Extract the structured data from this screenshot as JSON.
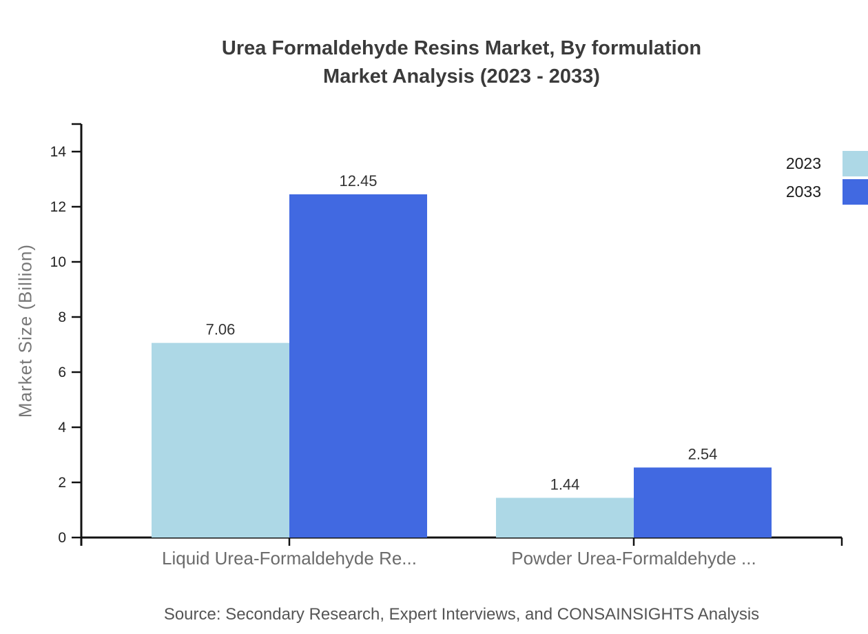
{
  "title": {
    "line1": "Urea Formaldehyde Resins Market, By formulation",
    "line2": "Market Analysis (2023 - 2033)"
  },
  "source": "Source: Secondary Research, Expert Interviews, and CONSAINSIGHTS Analysis",
  "colors": {
    "series_2023": "#ADD8E6",
    "series_2033": "#4169E1",
    "axis": "#111111",
    "title_text": "#3b3b3b",
    "tick_text": "#222222",
    "category_text": "#6b6b6b",
    "value_text": "#333333",
    "source_text": "#555555",
    "axis_title_text": "#777777"
  },
  "legend": {
    "items": [
      {
        "label": "2023",
        "color": "#ADD8E6"
      },
      {
        "label": "2033",
        "color": "#4169E1"
      }
    ]
  },
  "chart_data": {
    "type": "bar",
    "title": "Urea Formaldehyde Resins Market, By formulation Market Analysis (2023 - 2033)",
    "categories": [
      "Liquid Urea-Formaldehyde Re...",
      "Powder Urea-Formaldehyde ..."
    ],
    "series": [
      {
        "name": "2023",
        "color": "#ADD8E6",
        "values": [
          7.06,
          1.44
        ]
      },
      {
        "name": "2033",
        "color": "#4169E1",
        "values": [
          12.45,
          2.54
        ]
      }
    ],
    "xlabel": "",
    "ylabel": "Market Size (Billion)",
    "ylim": [
      0,
      15
    ],
    "yticks": [
      0,
      2,
      4,
      6,
      8,
      10,
      12,
      14
    ],
    "grid": false,
    "legend_position": "top-right",
    "value_labels": true
  }
}
